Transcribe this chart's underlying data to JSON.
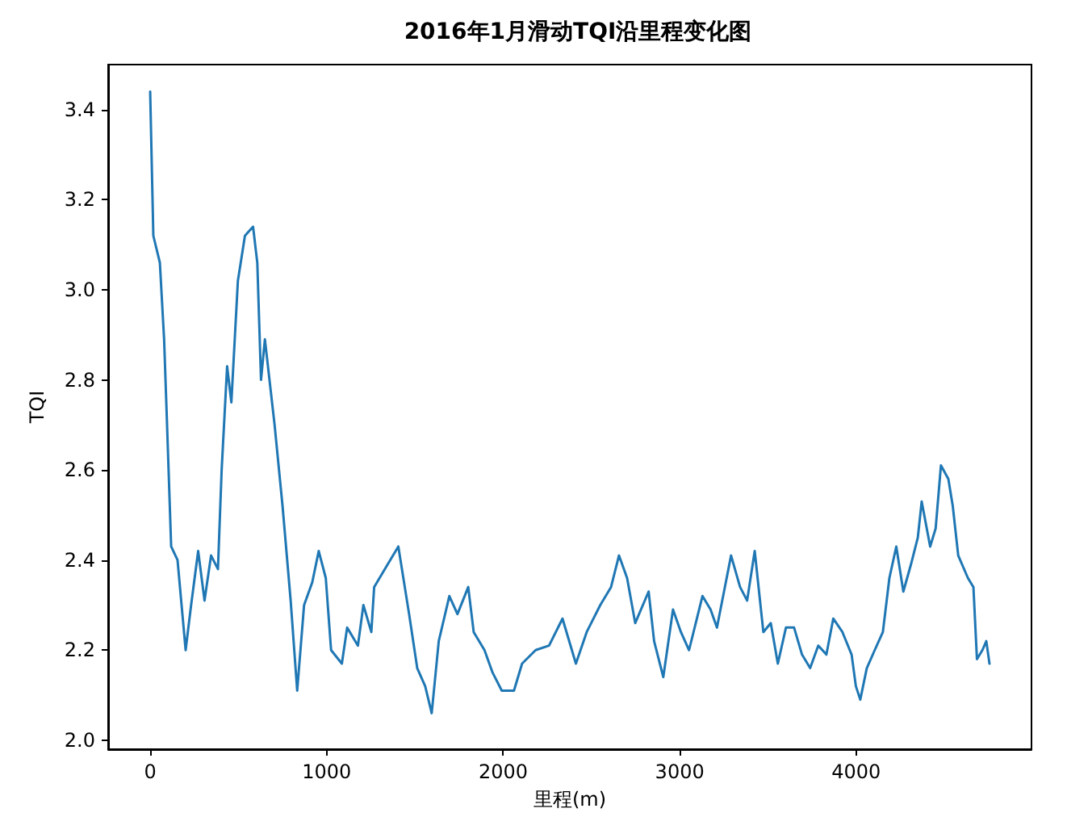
{
  "chart_data": {
    "type": "line",
    "title": "2016年1月滑动TQI沿里程变化图",
    "xlabel": "里程(m)",
    "ylabel": "TQI",
    "xlim": [
      -238,
      4993
    ],
    "xticks": [
      0,
      1000,
      2000,
      3000,
      4000
    ],
    "ylim": [
      1.98,
      3.5
    ],
    "yticks": [
      {
        "value": 2,
        "label": "2.0"
      },
      {
        "value": 2.2,
        "label": "2.2"
      },
      {
        "value": 2.4,
        "label": "2.4"
      },
      {
        "value": 2.6,
        "label": "2.6"
      },
      {
        "value": 2.8,
        "label": "2.8"
      },
      {
        "value": 3,
        "label": "3.0"
      },
      {
        "value": 3.2,
        "label": "3.2"
      },
      {
        "value": 3.4,
        "label": "3.4"
      }
    ],
    "grid": false,
    "marker": "none",
    "line_style": "solid",
    "series": [
      {
        "color": "#1f77b4",
        "x": [
          0,
          18,
          55,
          79,
          94,
          119,
          155,
          201,
          232,
          272,
          308,
          345,
          384,
          405,
          436,
          460,
          497,
          537,
          583,
          607,
          628,
          650,
          705,
          750,
          796,
          833,
          872,
          918,
          955,
          995,
          1025,
          1086,
          1116,
          1177,
          1208,
          1253,
          1269,
          1345,
          1406,
          1467,
          1513,
          1558,
          1595,
          1635,
          1695,
          1741,
          1802,
          1833,
          1894,
          1940,
          1992,
          2061,
          2107,
          2184,
          2260,
          2336,
          2412,
          2473,
          2550,
          2611,
          2656,
          2702,
          2748,
          2824,
          2855,
          2907,
          2962,
          3007,
          3053,
          3129,
          3175,
          3211,
          3251,
          3291,
          3342,
          3382,
          3425,
          3474,
          3516,
          3556,
          3602,
          3648,
          3693,
          3739,
          3785,
          3831,
          3870,
          3922,
          3974,
          3998,
          4023,
          4060,
          4105,
          4151,
          4188,
          4227,
          4267,
          4310,
          4349,
          4371,
          4419,
          4450,
          4480,
          4522,
          4547,
          4578,
          4633,
          4664,
          4684,
          4715,
          4737,
          4755
        ],
        "values": [
          3.44,
          3.12,
          3.06,
          2.89,
          2.72,
          2.43,
          2.4,
          2.2,
          2.3,
          2.42,
          2.31,
          2.41,
          2.38,
          2.6,
          2.83,
          2.75,
          3.02,
          3.12,
          3.14,
          3.06,
          2.8,
          2.89,
          2.7,
          2.52,
          2.31,
          2.11,
          2.3,
          2.35,
          2.42,
          2.36,
          2.2,
          2.17,
          2.25,
          2.21,
          2.3,
          2.24,
          2.34,
          2.39,
          2.43,
          2.28,
          2.16,
          2.12,
          2.06,
          2.22,
          2.32,
          2.28,
          2.34,
          2.24,
          2.2,
          2.15,
          2.11,
          2.11,
          2.17,
          2.2,
          2.21,
          2.27,
          2.17,
          2.24,
          2.3,
          2.34,
          2.41,
          2.36,
          2.26,
          2.33,
          2.22,
          2.14,
          2.29,
          2.24,
          2.2,
          2.32,
          2.29,
          2.25,
          2.33,
          2.41,
          2.34,
          2.31,
          2.42,
          2.24,
          2.26,
          2.17,
          2.25,
          2.25,
          2.19,
          2.16,
          2.21,
          2.19,
          2.27,
          2.24,
          2.19,
          2.12,
          2.09,
          2.16,
          2.2,
          2.24,
          2.36,
          2.43,
          2.33,
          2.39,
          2.45,
          2.53,
          2.43,
          2.47,
          2.61,
          2.58,
          2.52,
          2.41,
          2.36,
          2.34,
          2.18,
          2.2,
          2.22,
          2.17
        ]
      }
    ]
  }
}
